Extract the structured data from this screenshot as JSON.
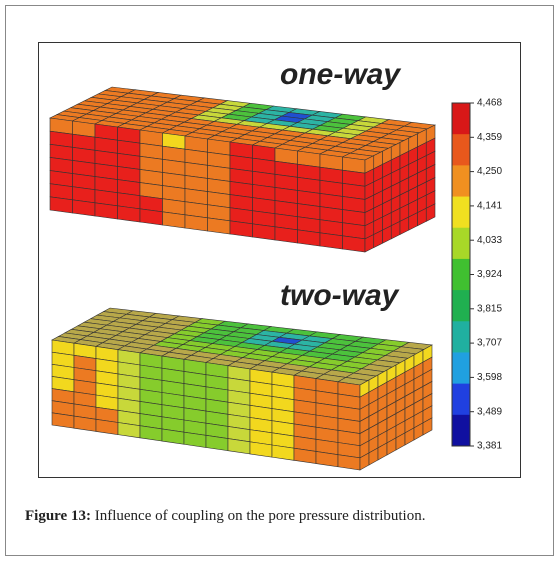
{
  "figure": {
    "labels": [
      "one-way",
      "two-way"
    ],
    "colorbar": {
      "ticks": [
        "4,468",
        "4,359",
        "4,250",
        "4,141",
        "4,033",
        "3,924",
        "3,815",
        "3,707",
        "3,598",
        "3,489",
        "3,381"
      ]
    },
    "caption": {
      "label": "Figure 13:",
      "text": "Influence of coupling on the pore pressure distribution."
    }
  }
}
